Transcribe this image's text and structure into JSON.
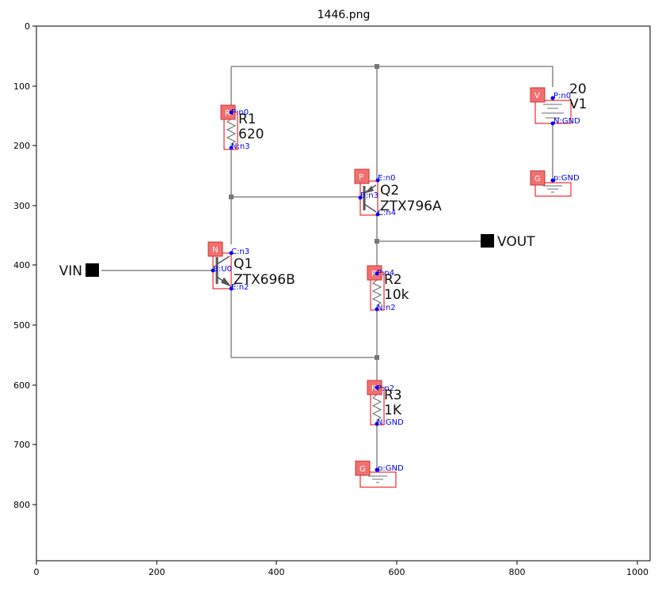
{
  "title": "1446.png",
  "axes": {
    "x_ticks": [
      "0",
      "200",
      "400",
      "600",
      "800",
      "1000"
    ],
    "y_ticks": [
      "0",
      "100",
      "200",
      "300",
      "400",
      "500",
      "600",
      "700",
      "800"
    ]
  },
  "ports": {
    "vin": "VIN",
    "vout": "VOUT"
  },
  "components": {
    "r1": {
      "tag": "R",
      "name": "R1",
      "value": "620",
      "pin_top": "P:n0",
      "pin_bottom": "N:n3"
    },
    "v1": {
      "tag": "V",
      "name": "V1",
      "value": "20",
      "pin_top": "P:n0",
      "pin_bottom": "N:GND"
    },
    "g1": {
      "tag": "G",
      "pin": "p:GND"
    },
    "q2": {
      "tag": "P",
      "name": "Q2",
      "value": "ZTX796A",
      "pin_e": "E:n0",
      "pin_b": "B:n3",
      "pin_c": "C:n4"
    },
    "q1": {
      "tag": "N",
      "name": "Q1",
      "value": "ZTX696B",
      "pin_c": "C:n3",
      "pin_b": "B:U0",
      "pin_e": "E:n2"
    },
    "r2": {
      "tag": "R",
      "name": "R2",
      "value": "10k",
      "pin_top": "P:n4",
      "pin_bottom": "N:n2"
    },
    "r3": {
      "tag": "R",
      "name": "R3",
      "value": "1K",
      "pin_top": "P:n2",
      "pin_bottom": "N:GND"
    },
    "g2": {
      "tag": "G",
      "pin": "p:GND"
    }
  }
}
